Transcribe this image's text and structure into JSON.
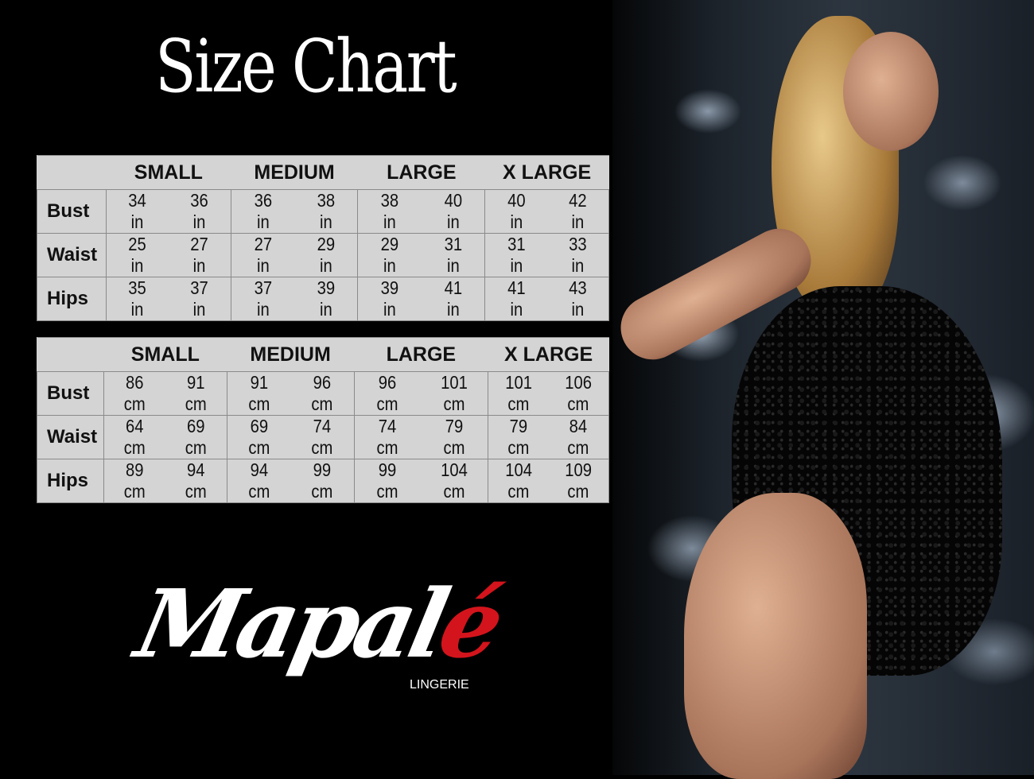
{
  "title": "Size Chart",
  "sizes": [
    "SMALL",
    "MEDIUM",
    "LARGE",
    "X LARGE"
  ],
  "inches_table": {
    "rows": [
      {
        "label": "Bust",
        "values": [
          "34 in",
          "36 in",
          "36 in",
          "38 in",
          "38 in",
          "40 in",
          "40 in",
          "42 in"
        ]
      },
      {
        "label": "Waist",
        "values": [
          "25 in",
          "27 in",
          "27 in",
          "29 in",
          "29 in",
          "31 in",
          "31 in",
          "33 in"
        ]
      },
      {
        "label": "Hips",
        "values": [
          "35 in",
          "37 in",
          "37 in",
          "39 in",
          "39 in",
          "41 in",
          "41 in",
          "43 in"
        ]
      }
    ]
  },
  "cm_table": {
    "rows": [
      {
        "label": "Bust",
        "values": [
          "86 cm",
          "91 cm",
          "91 cm",
          "96 cm",
          "96 cm",
          "101 cm",
          "101 cm",
          "106 cm"
        ]
      },
      {
        "label": "Waist",
        "values": [
          "64 cm",
          "69 cm",
          "69 cm",
          "74 cm",
          "74 cm",
          "79  cm",
          "79 cm",
          "84 cm"
        ]
      },
      {
        "label": "Hips",
        "values": [
          "89 cm",
          "94 cm",
          "94 cm",
          "99 cm",
          "99 cm",
          "104 cm",
          "104 cm",
          "109 cm"
        ]
      }
    ]
  },
  "brand": {
    "name_main": "Mapal",
    "name_accent": "é",
    "subtitle": "LINGERIE",
    "accent_color": "#d3141c"
  },
  "colors": {
    "background": "#000000",
    "table_bg": "#d4d4d4"
  }
}
